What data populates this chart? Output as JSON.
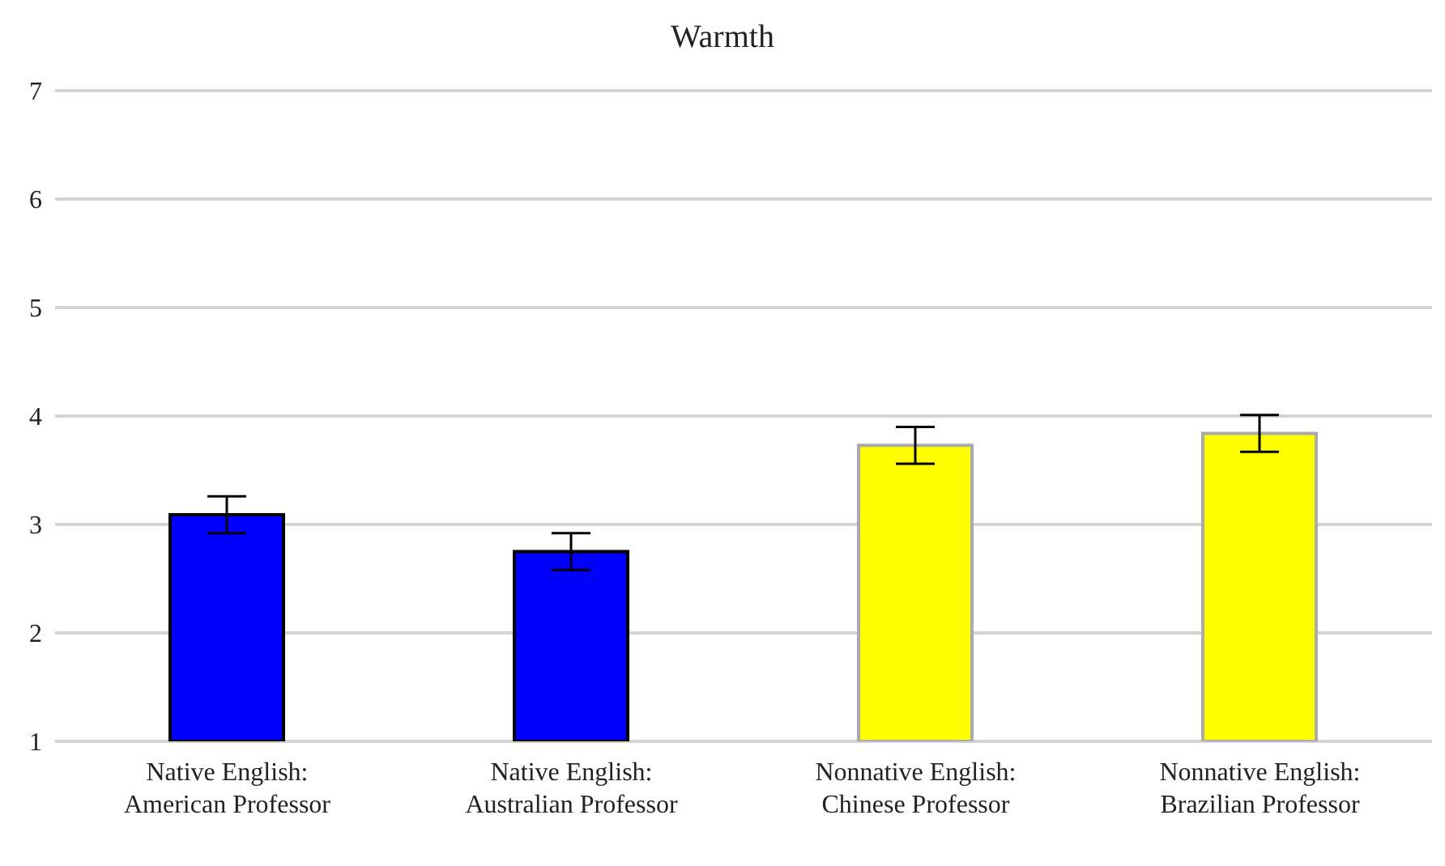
{
  "chart_data": {
    "type": "bar",
    "title": "Warmth",
    "categories": [
      "Native English:\nAmerican Professor",
      "Native English:\nAustralian Professor",
      "Nonnative English:\nChinese Professor",
      "Nonnative English:\nBrazilian Professor"
    ],
    "values": [
      3.09,
      2.75,
      3.73,
      3.84
    ],
    "errors": [
      0.17,
      0.17,
      0.17,
      0.17
    ],
    "colors": [
      "#0000ff",
      "#0000ff",
      "#ffff00",
      "#ffff00"
    ],
    "ylim": [
      1,
      7
    ],
    "yticks": [
      1,
      2,
      3,
      4,
      5,
      6,
      7
    ],
    "grid": "y"
  }
}
